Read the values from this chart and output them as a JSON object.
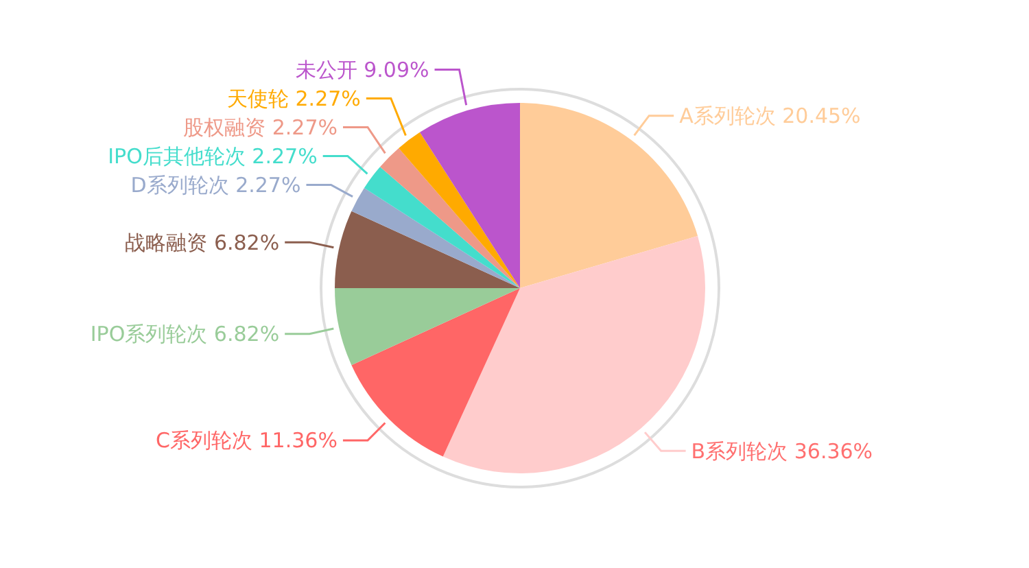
{
  "chart_data": {
    "type": "pie",
    "categories": [
      "A系列轮次",
      "B系列轮次",
      "C系列轮次",
      "IPO系列轮次",
      "战略融资",
      "D系列轮次",
      "IPO后其他轮次",
      "股权融资",
      "天使轮",
      "未公开"
    ],
    "values": [
      20.45,
      36.36,
      11.36,
      6.82,
      6.82,
      2.27,
      2.27,
      2.27,
      2.27,
      9.09
    ],
    "colors": [
      "#ffcc99",
      "#ffcccc",
      "#ff6666",
      "#99cc99",
      "#8b5e4e",
      "#99aacc",
      "#44ddcc",
      "#ee9988",
      "#ffaa00",
      "#bb55cc"
    ],
    "value_labels": [
      "20.45%",
      "36.36%",
      "11.36%",
      "6.82%",
      "6.82%",
      "2.27%",
      "2.27%",
      "2.27%",
      "2.27%",
      "9.09%"
    ]
  }
}
